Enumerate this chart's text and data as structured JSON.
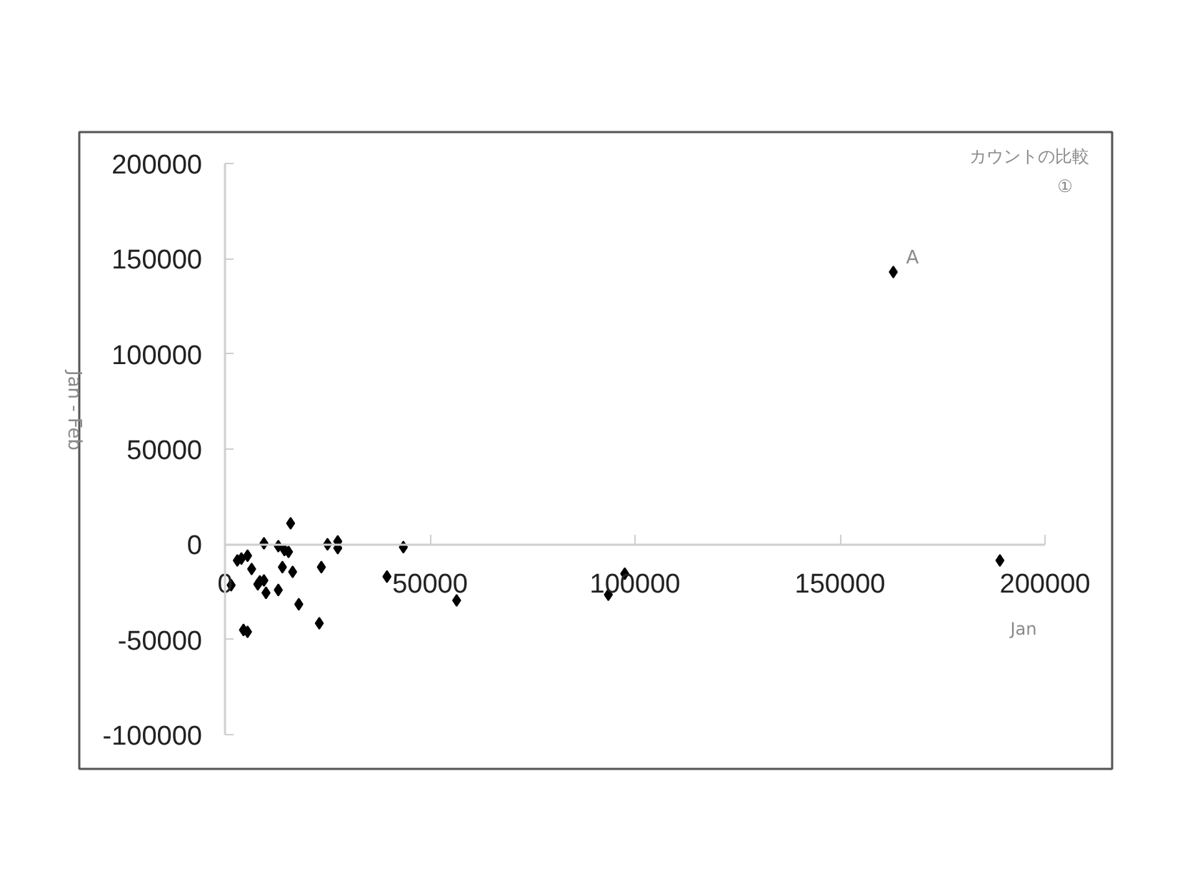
{
  "chart_data": {
    "type": "scatter",
    "xlabel": "Jan",
    "ylabel": "Jan - Feb",
    "annotations": [
      "カウントの比較",
      "①",
      {
        "text": "A",
        "x": 163000,
        "y": 143000
      }
    ],
    "x": [
      16000,
      9500,
      13000,
      14500,
      15500,
      25000,
      27500,
      27500,
      43500,
      3000,
      4000,
      5500,
      6500,
      14000,
      16500,
      23500,
      8000,
      8500,
      9500,
      10000,
      13000,
      1500,
      18000,
      23000,
      4500,
      5500,
      39500,
      56500,
      93500,
      97500,
      163000,
      189000
    ],
    "values": [
      11000,
      500,
      -1000,
      -3000,
      -4000,
      0,
      1500,
      -2000,
      -1500,
      -8500,
      -7500,
      -6000,
      -13000,
      -12000,
      -14500,
      -12000,
      -21000,
      -19500,
      -19000,
      -25500,
      -24000,
      -21500,
      -31500,
      -41500,
      -45000,
      -46000,
      -17000,
      -29500,
      -26500,
      -15500,
      143000,
      -8500
    ],
    "color": "#000000",
    "marker": "diamond",
    "grid": false,
    "xlim": [
      0,
      200000
    ],
    "ylim": [
      -100000,
      200000
    ],
    "xticks": [
      0,
      50000,
      100000,
      150000,
      200000
    ],
    "yticks": [
      -100000,
      -50000,
      0,
      50000,
      100000,
      150000,
      200000
    ]
  }
}
